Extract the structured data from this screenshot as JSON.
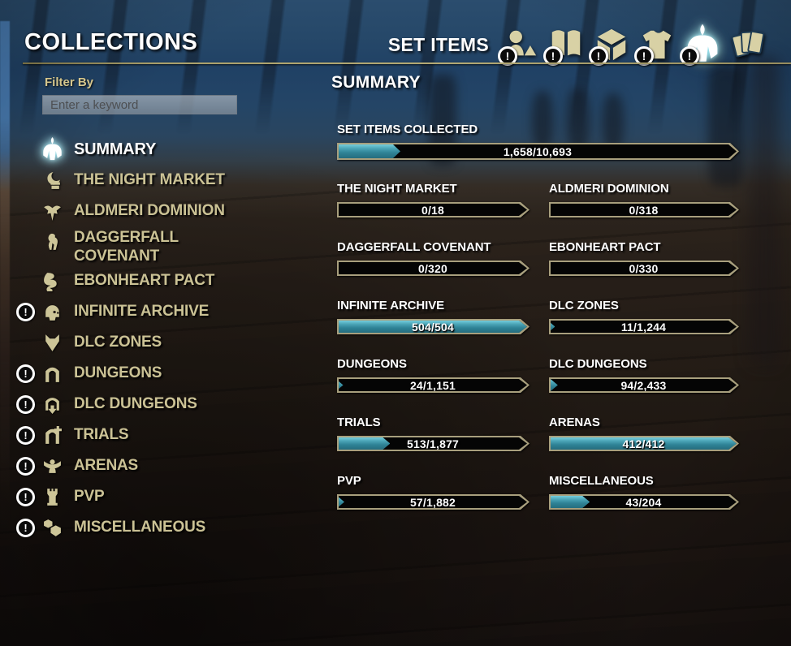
{
  "ui": {
    "badge_glyph": "!"
  },
  "header": {
    "title": "COLLECTIONS",
    "section_title": "SET ITEMS"
  },
  "tabs": [
    {
      "icon": "collectibles-icon",
      "badge": true,
      "active": false
    },
    {
      "icon": "stories-icon",
      "badge": true,
      "active": false
    },
    {
      "icon": "furnishings-icon",
      "badge": true,
      "active": false
    },
    {
      "icon": "outfit-styles-icon",
      "badge": true,
      "active": false
    },
    {
      "icon": "set-items-helmet-icon",
      "badge": true,
      "active": true
    },
    {
      "icon": "tribute-cards-icon",
      "badge": false,
      "active": false
    }
  ],
  "filter": {
    "label": "Filter By",
    "placeholder": "Enter a keyword",
    "value": ""
  },
  "sidebar": {
    "items": [
      {
        "label": "SUMMARY",
        "icon": "helmet-icon",
        "badge": false,
        "selected": true
      },
      {
        "label": "THE NIGHT MARKET",
        "icon": "night-market-icon",
        "badge": false,
        "selected": false
      },
      {
        "label": "ALDMERI DOMINION",
        "icon": "eagle-icon",
        "badge": false,
        "selected": false
      },
      {
        "label": "DAGGERFALL COVENANT",
        "icon": "lion-icon",
        "badge": false,
        "selected": false
      },
      {
        "label": "EBONHEART PACT",
        "icon": "dragon-icon",
        "badge": false,
        "selected": false
      },
      {
        "label": "INFINITE ARCHIVE",
        "icon": "archive-helm-icon",
        "badge": true,
        "selected": false
      },
      {
        "label": "DLC ZONES",
        "icon": "wolf-icon",
        "badge": false,
        "selected": false
      },
      {
        "label": "DUNGEONS",
        "icon": "door-icon",
        "badge": true,
        "selected": false
      },
      {
        "label": "DLC DUNGEONS",
        "icon": "door-down-icon",
        "badge": true,
        "selected": false
      },
      {
        "label": "TRIALS",
        "icon": "door-plus-icon",
        "badge": true,
        "selected": false
      },
      {
        "label": "ARENAS",
        "icon": "arena-icon",
        "badge": true,
        "selected": false
      },
      {
        "label": "PVP",
        "icon": "tower-icon",
        "badge": true,
        "selected": false
      },
      {
        "label": "MISCELLANEOUS",
        "icon": "cubes-icon",
        "badge": true,
        "selected": false
      }
    ]
  },
  "main": {
    "heading": "SUMMARY"
  },
  "stats": {
    "hero": {
      "label": "SET ITEMS COLLECTED",
      "display": "1,658/10,693",
      "current": 1658,
      "max": 10693
    },
    "grid": [
      {
        "label": "THE NIGHT MARKET",
        "display": "0/18",
        "current": 0,
        "max": 18
      },
      {
        "label": "ALDMERI DOMINION",
        "display": "0/318",
        "current": 0,
        "max": 318
      },
      {
        "label": "DAGGERFALL COVENANT",
        "display": "0/320",
        "current": 0,
        "max": 320
      },
      {
        "label": "EBONHEART PACT",
        "display": "0/330",
        "current": 0,
        "max": 330
      },
      {
        "label": "INFINITE ARCHIVE",
        "display": "504/504",
        "current": 504,
        "max": 504
      },
      {
        "label": "DLC ZONES",
        "display": "11/1,244",
        "current": 11,
        "max": 1244
      },
      {
        "label": "DUNGEONS",
        "display": "24/1,151",
        "current": 24,
        "max": 1151
      },
      {
        "label": "DLC DUNGEONS",
        "display": "94/2,433",
        "current": 94,
        "max": 2433
      },
      {
        "label": "TRIALS",
        "display": "513/1,877",
        "current": 513,
        "max": 1877
      },
      {
        "label": "ARENAS",
        "display": "412/412",
        "current": 412,
        "max": 412
      },
      {
        "label": "PVP",
        "display": "57/1,882",
        "current": 57,
        "max": 1882
      },
      {
        "label": "MISCELLANEOUS",
        "display": "43/204",
        "current": 43,
        "max": 204
      }
    ]
  },
  "colors": {
    "accent_teal": "#2f8396",
    "teal_light": "#74cddc",
    "bar_border": "#a89f7d",
    "gold_rule": "#aaa06b",
    "sidebar_text": "#cbc295",
    "selected_text": "#ffffff",
    "filter_label": "#d6c78d",
    "bar_background": "#050505"
  }
}
